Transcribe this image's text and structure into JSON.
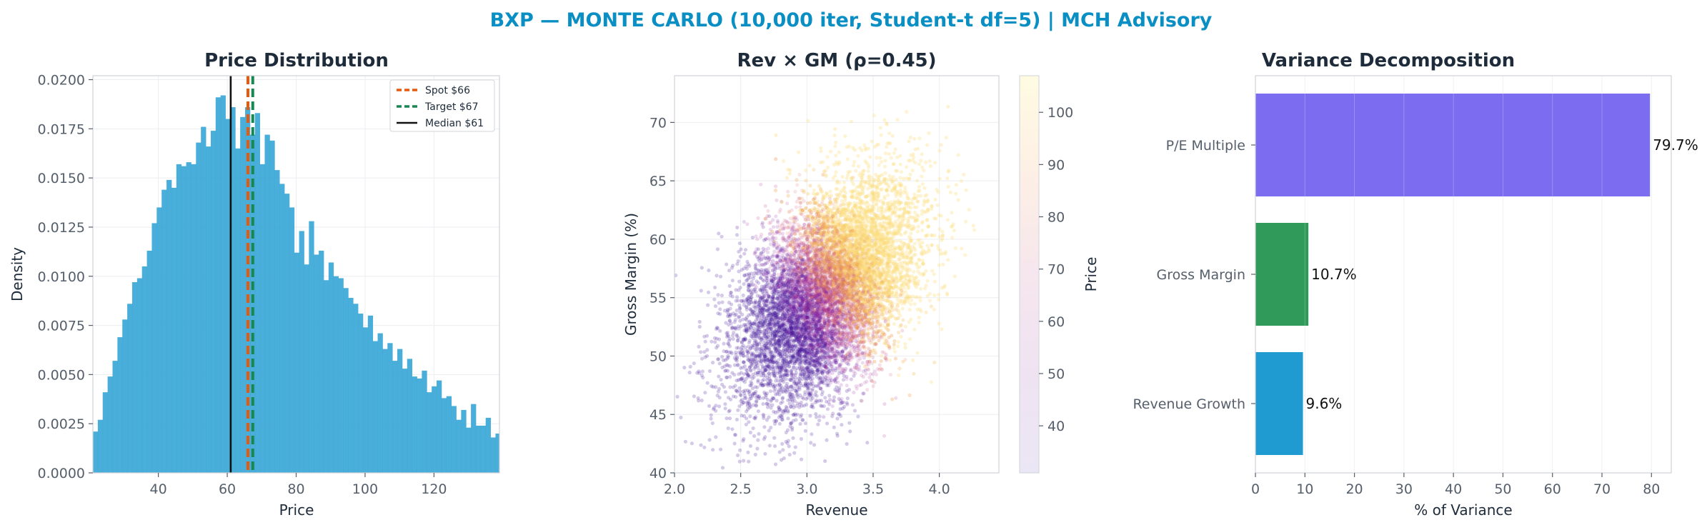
{
  "figure": {
    "suptitle": "BXP — MONTE CARLO (10,000 iter, Student-t df=5) | MCH Advisory"
  },
  "colors": {
    "suptitle": "#0a8fc4",
    "histogram": "#3aa7d6",
    "spot": "#e8590c",
    "target": "#198754",
    "median": "#111111",
    "pe_bar": "#7b6cf0",
    "gm_bar": "#2f9a5a",
    "rev_bar": "#1f9bd1"
  },
  "chart_data": [
    {
      "type": "bar",
      "subtype": "histogram",
      "title": "Price Distribution",
      "xlabel": "Price",
      "ylabel": "Density",
      "xlim": [
        21,
        139
      ],
      "ylim": [
        0,
        0.0202
      ],
      "xticks": [
        "40",
        "60",
        "80",
        "100",
        "120"
      ],
      "yticks": [
        "0.0000",
        "0.0025",
        "0.0050",
        "0.0075",
        "0.0100",
        "0.0125",
        "0.0150",
        "0.0175",
        "0.0200"
      ],
      "bin_start": 21,
      "bin_width": 1.425,
      "values": [
        0.0021,
        0.0027,
        0.0041,
        0.0049,
        0.0057,
        0.0069,
        0.0078,
        0.0086,
        0.0097,
        0.0099,
        0.0105,
        0.0113,
        0.0127,
        0.0135,
        0.0144,
        0.0149,
        0.0145,
        0.0157,
        0.0156,
        0.0158,
        0.0157,
        0.0168,
        0.0176,
        0.0166,
        0.0174,
        0.0191,
        0.0192,
        0.018,
        0.0186,
        0.0165,
        0.0181,
        0.0186,
        0.0172,
        0.0183,
        0.0157,
        0.0172,
        0.0169,
        0.0154,
        0.0147,
        0.0142,
        0.0135,
        0.0112,
        0.0123,
        0.0106,
        0.0128,
        0.0111,
        0.0113,
        0.0098,
        0.0107,
        0.01,
        0.0099,
        0.0094,
        0.0089,
        0.0086,
        0.0081,
        0.0074,
        0.008,
        0.0067,
        0.0071,
        0.0063,
        0.0066,
        0.0057,
        0.0063,
        0.0053,
        0.0058,
        0.0049,
        0.0048,
        0.0052,
        0.0041,
        0.0044,
        0.0047,
        0.0038,
        0.0039,
        0.0034,
        0.0027,
        0.0032,
        0.0023,
        0.0035,
        0.0024,
        0.0024,
        0.0028,
        0.0018,
        0.002,
        0.0016,
        0.0017,
        0.0015,
        0.0015,
        0.0012,
        0.0013,
        0.0016,
        0.0011,
        0.0013,
        0.0012,
        0.0015,
        0.0011,
        0.0011,
        0.0009,
        0.001,
        0.001,
        0.0009,
        0.0012,
        0.0008,
        0.0009,
        0.0007,
        0.0008,
        0.0006,
        0.0007
      ],
      "lines": [
        {
          "name": "Spot $66",
          "x": 66,
          "style": "dashed",
          "color": "#e8590c"
        },
        {
          "name": "Target $67",
          "x": 67.4,
          "style": "dashed",
          "color": "#198754"
        },
        {
          "name": "Median $61",
          "x": 61,
          "style": "solid",
          "color": "#111111"
        }
      ],
      "legend": "top-right",
      "grid": true
    },
    {
      "type": "scatter",
      "title": "Rev × GM (ρ=0.45)",
      "xlabel": "Revenue",
      "ylabel": "Gross Margin (%)",
      "xlim": [
        2.0,
        4.45
      ],
      "ylim": [
        40,
        74
      ],
      "xticks": [
        "2.0",
        "2.5",
        "3.0",
        "3.5",
        "4.0"
      ],
      "yticks": [
        "40",
        "45",
        "50",
        "55",
        "60",
        "65",
        "70"
      ],
      "n_points": 10000,
      "revenue_mean": 3.15,
      "revenue_sd": 0.33,
      "gm_mean": 55.5,
      "gm_sd": 4.6,
      "correlation": 0.45,
      "colorbar": {
        "label": "Price",
        "range": [
          31,
          107
        ],
        "ticks": [
          "40",
          "50",
          "60",
          "70",
          "80",
          "90",
          "100"
        ],
        "colormap": "plasma-light"
      },
      "grid": true
    },
    {
      "type": "bar",
      "orientation": "horizontal",
      "title": "Variance Decomposition",
      "xlabel": "% of Variance",
      "xlim": [
        0,
        84
      ],
      "xticks": [
        "0",
        "10",
        "20",
        "30",
        "40",
        "50",
        "60",
        "70",
        "80"
      ],
      "categories": [
        "P/E Multiple",
        "Gross Margin",
        "Revenue Growth"
      ],
      "values": [
        79.7,
        10.7,
        9.6
      ],
      "value_labels": [
        "79.7%",
        "10.7%",
        "9.6%"
      ],
      "grid": true
    }
  ]
}
